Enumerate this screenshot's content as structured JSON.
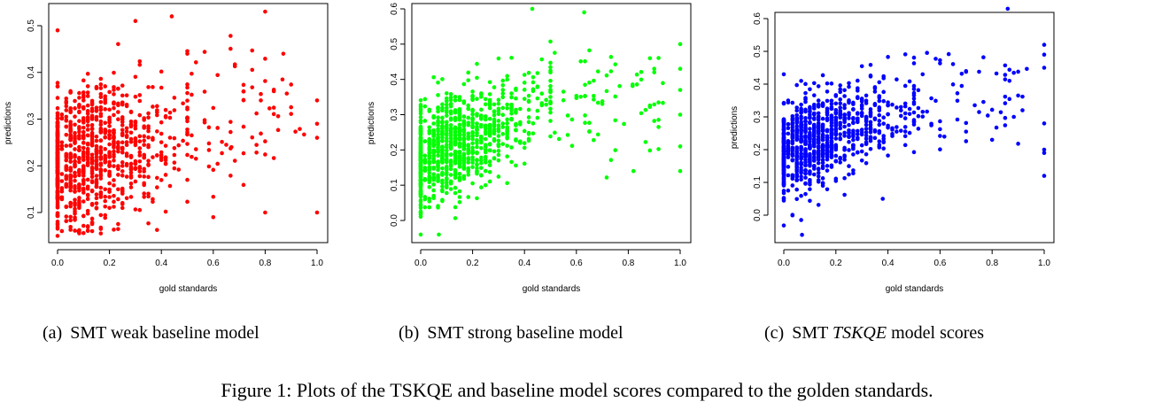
{
  "chart_data": [
    {
      "type": "scatter",
      "xlabel": "gold standards",
      "ylabel": "predictions",
      "xlim": [
        0,
        1
      ],
      "ylim": [
        0.05,
        0.53
      ],
      "xticks": [
        "0.0",
        "0.2",
        "0.4",
        "0.6",
        "0.8",
        "1.0"
      ],
      "yticks": [
        "0.1",
        "0.2",
        "0.3",
        "0.4",
        "0.5"
      ],
      "color": "#ff0000",
      "seed": 17,
      "n": 1000,
      "points": [
        [
          0.0,
          0.49
        ],
        [
          0.3,
          0.51
        ],
        [
          0.44,
          0.52
        ],
        [
          0.8,
          0.53
        ],
        [
          0.87,
          0.44
        ],
        [
          0.08,
          0.06
        ],
        [
          0.0,
          0.05
        ],
        [
          1.0,
          0.1
        ],
        [
          1.0,
          0.34
        ],
        [
          1.0,
          0.29
        ],
        [
          1.0,
          0.26
        ],
        [
          0.6,
          0.09
        ],
        [
          0.8,
          0.1
        ],
        [
          0.67,
          0.24
        ],
        [
          0.5,
          0.44
        ]
      ]
    },
    {
      "type": "scatter",
      "xlabel": "gold standards",
      "ylabel": "predictions",
      "xlim": [
        0,
        1
      ],
      "ylim": [
        -0.05,
        0.6
      ],
      "xticks": [
        "0.0",
        "0.2",
        "0.4",
        "0.6",
        "0.8",
        "1.0"
      ],
      "yticks": [
        "0.0",
        "0.1",
        "0.2",
        "0.3",
        "0.4",
        "0.5",
        "0.6"
      ],
      "color": "#00ff00",
      "seed": 29,
      "n": 1000,
      "points": [
        [
          0.43,
          0.6
        ],
        [
          0.63,
          0.59
        ],
        [
          1.0,
          0.5
        ],
        [
          1.0,
          0.43
        ],
        [
          1.0,
          0.37
        ],
        [
          1.0,
          0.3
        ],
        [
          1.0,
          0.21
        ],
        [
          1.0,
          0.14
        ],
        [
          0.07,
          -0.04
        ],
        [
          0.0,
          -0.04
        ],
        [
          0.82,
          0.14
        ],
        [
          0.9,
          0.43
        ]
      ]
    },
    {
      "type": "scatter",
      "xlabel": "gold standards",
      "ylabel": "predictions",
      "xlim": [
        0,
        1
      ],
      "ylim": [
        -0.06,
        0.63
      ],
      "xticks": [
        "0.0",
        "0.2",
        "0.4",
        "0.6",
        "0.8",
        "1.0"
      ],
      "yticks": [
        "0.0",
        "0.1",
        "0.2",
        "0.3",
        "0.4",
        "0.5",
        "0.6"
      ],
      "color": "#0000ff",
      "seed": 43,
      "n": 1000,
      "points": [
        [
          0.86,
          0.63
        ],
        [
          1.0,
          0.52
        ],
        [
          1.0,
          0.49
        ],
        [
          1.0,
          0.45
        ],
        [
          1.0,
          0.28
        ],
        [
          1.0,
          0.2
        ],
        [
          1.0,
          0.19
        ],
        [
          1.0,
          0.12
        ],
        [
          0.07,
          -0.06
        ],
        [
          0.0,
          0.43
        ],
        [
          0.38,
          0.05
        ],
        [
          0.8,
          0.23
        ]
      ]
    }
  ],
  "captions": [
    {
      "letter": "(a)",
      "text": "SMT weak baseline model"
    },
    {
      "letter": "(b)",
      "text": "SMT strong baseline model"
    },
    {
      "letter": "(c)",
      "pre": "SMT ",
      "em": "TSKQE",
      "post": " model scores"
    }
  ],
  "figure_caption": "Figure 1: Plots of the TSKQE and baseline model scores compared to the golden standards."
}
